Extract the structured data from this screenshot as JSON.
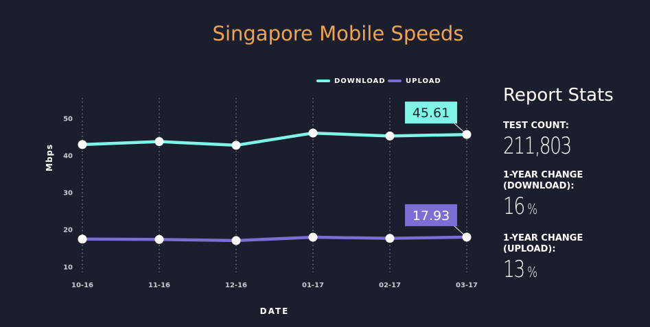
{
  "title": "Singapore Mobile Speeds",
  "chart_data": {
    "type": "line",
    "categories": [
      "10-16",
      "11-16",
      "12-16",
      "01-17",
      "02-17",
      "03-17"
    ],
    "series": [
      {
        "name": "DOWNLOAD",
        "color": "#7ff5e8",
        "values": [
          42.9,
          43.7,
          42.7,
          46.0,
          45.2,
          45.61
        ]
      },
      {
        "name": "UPLOAD",
        "color": "#7b6fd6",
        "values": [
          17.4,
          17.3,
          17.0,
          17.9,
          17.6,
          17.93
        ]
      }
    ],
    "callouts": [
      {
        "series": "DOWNLOAD",
        "label": "45.61"
      },
      {
        "series": "UPLOAD",
        "label": "17.93"
      }
    ],
    "xlabel": "DATE",
    "ylabel": "Mbps",
    "yticks": [
      10,
      20,
      30,
      40,
      50
    ],
    "ylim": [
      7,
      56
    ],
    "grid": "vertical-dotted",
    "legend_position": "top"
  },
  "stats": {
    "title": "Report Stats",
    "items": [
      {
        "label": "TEST COUNT:",
        "value": "211,803",
        "unit": ""
      },
      {
        "label": "1-YEAR CHANGE (DOWNLOAD):",
        "value": "16",
        "unit": "%"
      },
      {
        "label": "1-YEAR CHANGE (UPLOAD):",
        "value": "13",
        "unit": "%"
      }
    ]
  }
}
